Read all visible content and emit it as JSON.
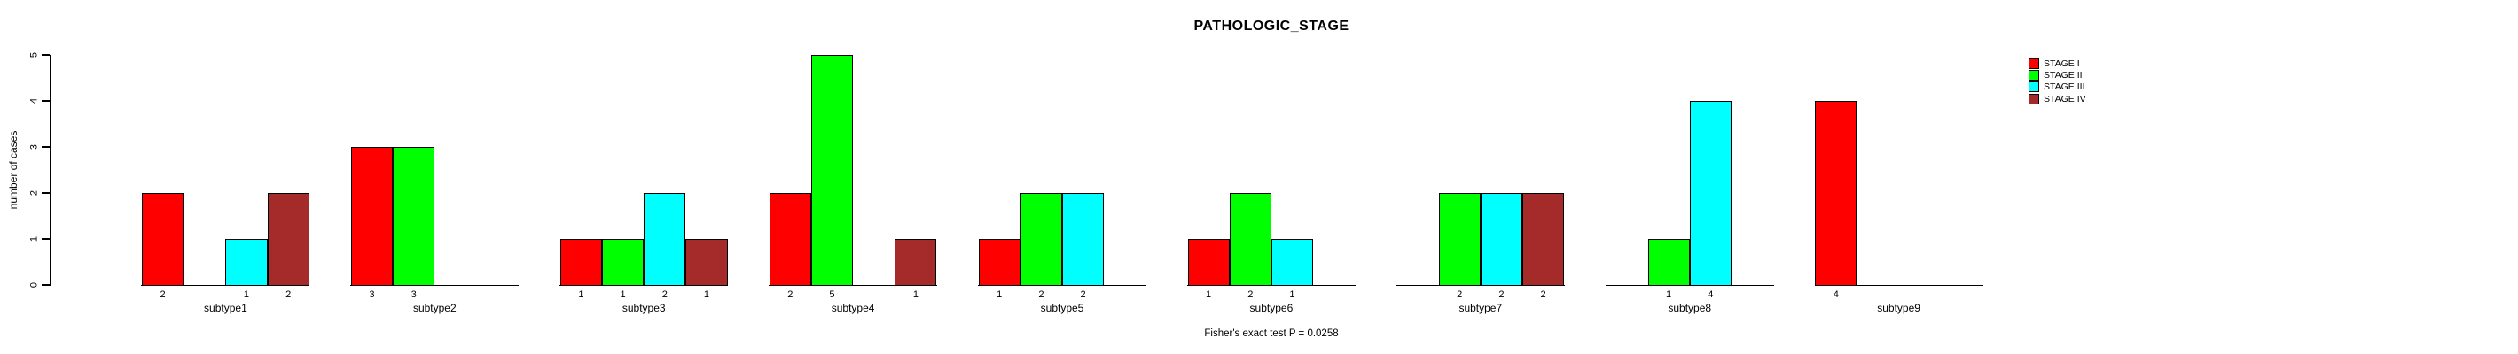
{
  "title": "PATHOLOGIC_STAGE",
  "footnote": "Fisher's exact test P = 0.0258",
  "chart_data": {
    "type": "bar",
    "title": "PATHOLOGIC_STAGE",
    "xlabel": "",
    "ylabel": "number of cases",
    "ylim": [
      0,
      5
    ],
    "yticks": [
      0,
      1,
      2,
      3,
      4,
      5
    ],
    "grid": false,
    "legend_position": "right-outside",
    "annotation": "Fisher's exact test P = 0.0258",
    "bar_value_labels": "each nonzero bar is labeled with its count beneath the baseline",
    "categories": [
      "subtype1",
      "subtype2",
      "subtype3",
      "subtype4",
      "subtype5",
      "subtype6",
      "subtype7",
      "subtype8",
      "subtype9"
    ],
    "series": [
      {
        "name": "STAGE I",
        "color": "#FF0000",
        "values": [
          2,
          3,
          1,
          2,
          1,
          1,
          0,
          0,
          4
        ]
      },
      {
        "name": "STAGE II",
        "color": "#00FF00",
        "values": [
          0,
          3,
          1,
          5,
          2,
          2,
          2,
          1,
          0
        ]
      },
      {
        "name": "STAGE III",
        "color": "#00FFFF",
        "values": [
          1,
          0,
          2,
          0,
          2,
          1,
          2,
          4,
          0
        ]
      },
      {
        "name": "STAGE IV",
        "color": "#A52A2A",
        "values": [
          2,
          0,
          1,
          1,
          0,
          0,
          2,
          0,
          0
        ]
      }
    ]
  },
  "legend": {
    "items": [
      {
        "label": "STAGE I",
        "color": "#FF0000"
      },
      {
        "label": "STAGE II",
        "color": "#00FF00"
      },
      {
        "label": "STAGE III",
        "color": "#00FFFF"
      },
      {
        "label": "STAGE IV",
        "color": "#A52A2A"
      }
    ]
  },
  "axis": {
    "y_tick_labels": [
      "0",
      "1",
      "2",
      "3",
      "4",
      "5"
    ]
  }
}
